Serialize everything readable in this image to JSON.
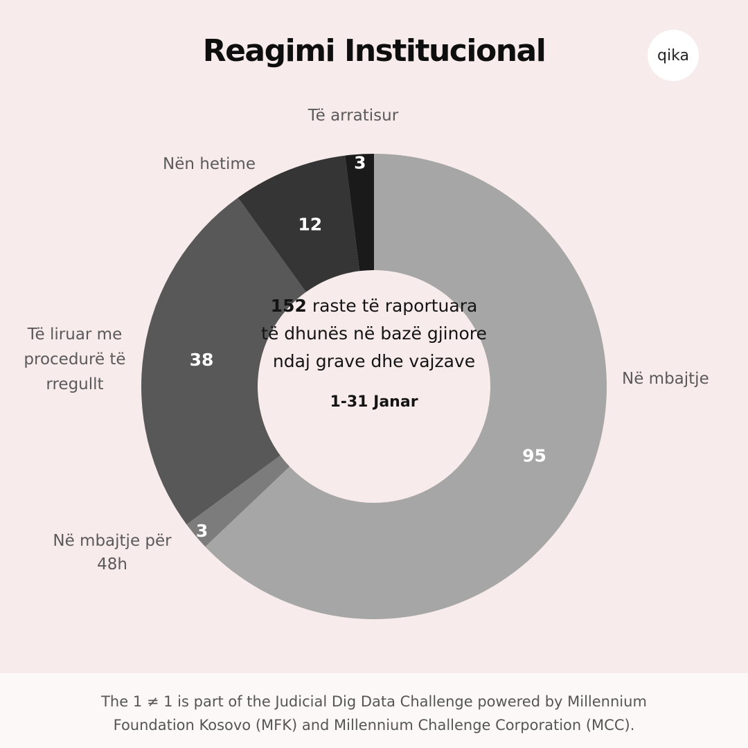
{
  "header": {
    "title": "Reagimi Institucional",
    "logo_text": "qika"
  },
  "chart_data": {
    "type": "pie",
    "subtype": "donut",
    "title": "Reagimi Institucional",
    "slices": [
      {
        "label": "Në mbajtje",
        "value": 95,
        "color": "#a6a6a6"
      },
      {
        "label": "Në mbajtje për 48h",
        "value": 3,
        "color": "#7c7c7c"
      },
      {
        "label": "Të liruar me procedurë të rregullt",
        "value": 38,
        "color": "#585858"
      },
      {
        "label": "Nën hetime",
        "value": 12,
        "color": "#353535"
      },
      {
        "label": "Të arratisur",
        "value": 3,
        "color": "#1a1a1a"
      }
    ],
    "center": {
      "total": "152",
      "text": "raste të raportuara të dhunës në bazë gjinore ndaj grave dhe vajzave",
      "period": "1-31 Janar"
    }
  },
  "footer": {
    "line1": "The 1 ≠ 1 is part of the Judicial Dig Data Challenge powered by Millennium",
    "line2": "Foundation Kosovo (MFK) and Millennium Challenge Corporation (MCC)."
  }
}
